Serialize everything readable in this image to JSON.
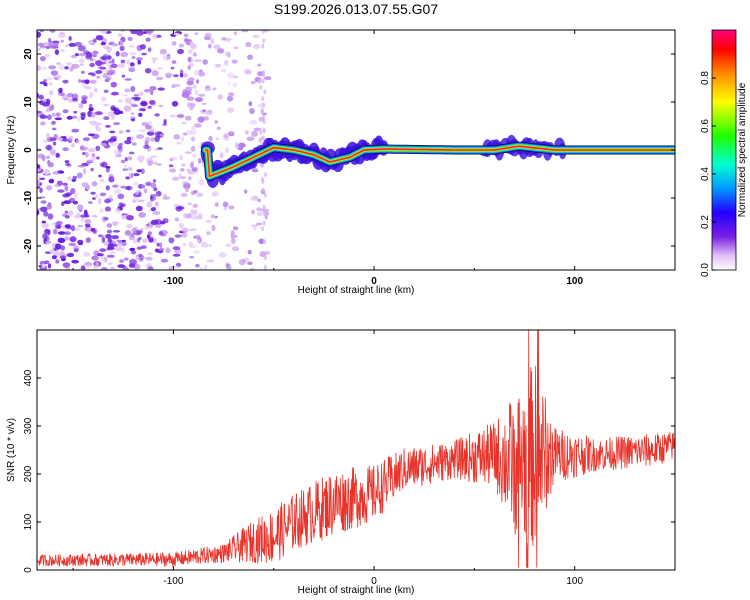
{
  "figure_title": "S199.2026.013.07.55.G07",
  "chart_data": [
    {
      "type": "heatmap",
      "xlabel": "Height of straight line (km)",
      "ylabel": "Frequency (Hz)",
      "xlim": [
        -168,
        150
      ],
      "ylim": [
        -25,
        25
      ],
      "xticks": [
        -100,
        0,
        100
      ],
      "yticks": [
        -20,
        -10,
        0,
        10,
        20
      ],
      "colorbar": {
        "label": "Normalized spectral amplitude",
        "range": [
          0,
          1
        ],
        "ticks": [
          "0.0",
          "0.2",
          "0.4",
          "0.6",
          "0.8"
        ]
      },
      "ridge": [
        {
          "x": -82,
          "f": -5.5
        },
        {
          "x": -70,
          "f": -3.5
        },
        {
          "x": -60,
          "f": -1.5
        },
        {
          "x": -50,
          "f": 0.5
        },
        {
          "x": -40,
          "f": 0.0
        },
        {
          "x": -30,
          "f": -1.0
        },
        {
          "x": -22,
          "f": -2.5
        },
        {
          "x": -12,
          "f": -1.5
        },
        {
          "x": -5,
          "f": 0.0
        },
        {
          "x": 5,
          "f": 0.2
        },
        {
          "x": 40,
          "f": 0.0
        },
        {
          "x": 60,
          "f": 0.0
        },
        {
          "x": 72,
          "f": 0.8
        },
        {
          "x": 90,
          "f": 0.0
        },
        {
          "x": 150,
          "f": 0.0
        }
      ]
    },
    {
      "type": "line",
      "xlabel": "Height of straight line (km)",
      "ylabel": "SNR (10 * v/v)",
      "xlim": [
        -168,
        150
      ],
      "ylim": [
        0,
        500
      ],
      "xticks": [
        -100,
        0,
        100
      ],
      "yticks": [
        0,
        100,
        200,
        300,
        400
      ],
      "color": "#e8322a",
      "series": [
        {
          "name": "SNR",
          "envelope": [
            {
              "x": -168,
              "mean": 20,
              "amp": 12
            },
            {
              "x": -100,
              "mean": 22,
              "amp": 15
            },
            {
              "x": -75,
              "mean": 35,
              "amp": 20
            },
            {
              "x": -60,
              "mean": 60,
              "amp": 45
            },
            {
              "x": -50,
              "mean": 70,
              "amp": 60
            },
            {
              "x": -40,
              "mean": 100,
              "amp": 60
            },
            {
              "x": -20,
              "mean": 140,
              "amp": 70
            },
            {
              "x": 0,
              "mean": 160,
              "amp": 60
            },
            {
              "x": 15,
              "mean": 210,
              "amp": 45
            },
            {
              "x": 40,
              "mean": 230,
              "amp": 40
            },
            {
              "x": 60,
              "mean": 240,
              "amp": 70
            },
            {
              "x": 70,
              "mean": 220,
              "amp": 150
            },
            {
              "x": 80,
              "mean": 240,
              "amp": 200
            },
            {
              "x": 90,
              "mean": 240,
              "amp": 60
            },
            {
              "x": 110,
              "mean": 240,
              "amp": 35
            },
            {
              "x": 140,
              "mean": 250,
              "amp": 35
            },
            {
              "x": 150,
              "mean": 260,
              "amp": 30
            }
          ]
        }
      ]
    }
  ]
}
